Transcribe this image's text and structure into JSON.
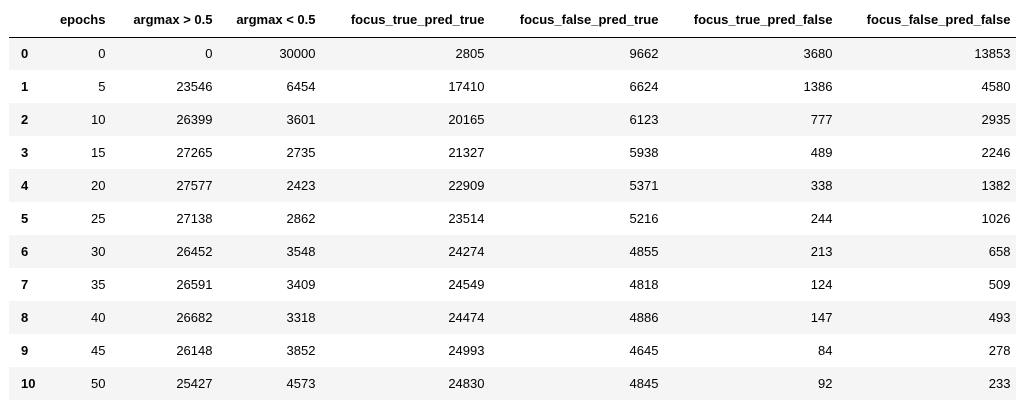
{
  "table": {
    "columns": [
      "",
      "epochs",
      "argmax > 0.5",
      "argmax < 0.5",
      "focus_true_pred_true",
      "focus_false_pred_true",
      "focus_true_pred_false",
      "focus_false_pred_false"
    ],
    "rows": [
      [
        "0",
        "0",
        "0",
        "30000",
        "2805",
        "9662",
        "3680",
        "13853"
      ],
      [
        "1",
        "5",
        "23546",
        "6454",
        "17410",
        "6624",
        "1386",
        "4580"
      ],
      [
        "2",
        "10",
        "26399",
        "3601",
        "20165",
        "6123",
        "777",
        "2935"
      ],
      [
        "3",
        "15",
        "27265",
        "2735",
        "21327",
        "5938",
        "489",
        "2246"
      ],
      [
        "4",
        "20",
        "27577",
        "2423",
        "22909",
        "5371",
        "338",
        "1382"
      ],
      [
        "5",
        "25",
        "27138",
        "2862",
        "23514",
        "5216",
        "244",
        "1026"
      ],
      [
        "6",
        "30",
        "26452",
        "3548",
        "24274",
        "4855",
        "213",
        "658"
      ],
      [
        "7",
        "35",
        "26591",
        "3409",
        "24549",
        "4818",
        "124",
        "509"
      ],
      [
        "8",
        "40",
        "26682",
        "3318",
        "24474",
        "4886",
        "147",
        "493"
      ],
      [
        "9",
        "45",
        "26148",
        "3852",
        "24993",
        "4645",
        "84",
        "278"
      ],
      [
        "10",
        "50",
        "25427",
        "4573",
        "24830",
        "4845",
        "92",
        "233"
      ]
    ]
  },
  "colors": {
    "stripe": "#f5f5f5",
    "background": "#ffffff",
    "header_rule": "#000000"
  }
}
